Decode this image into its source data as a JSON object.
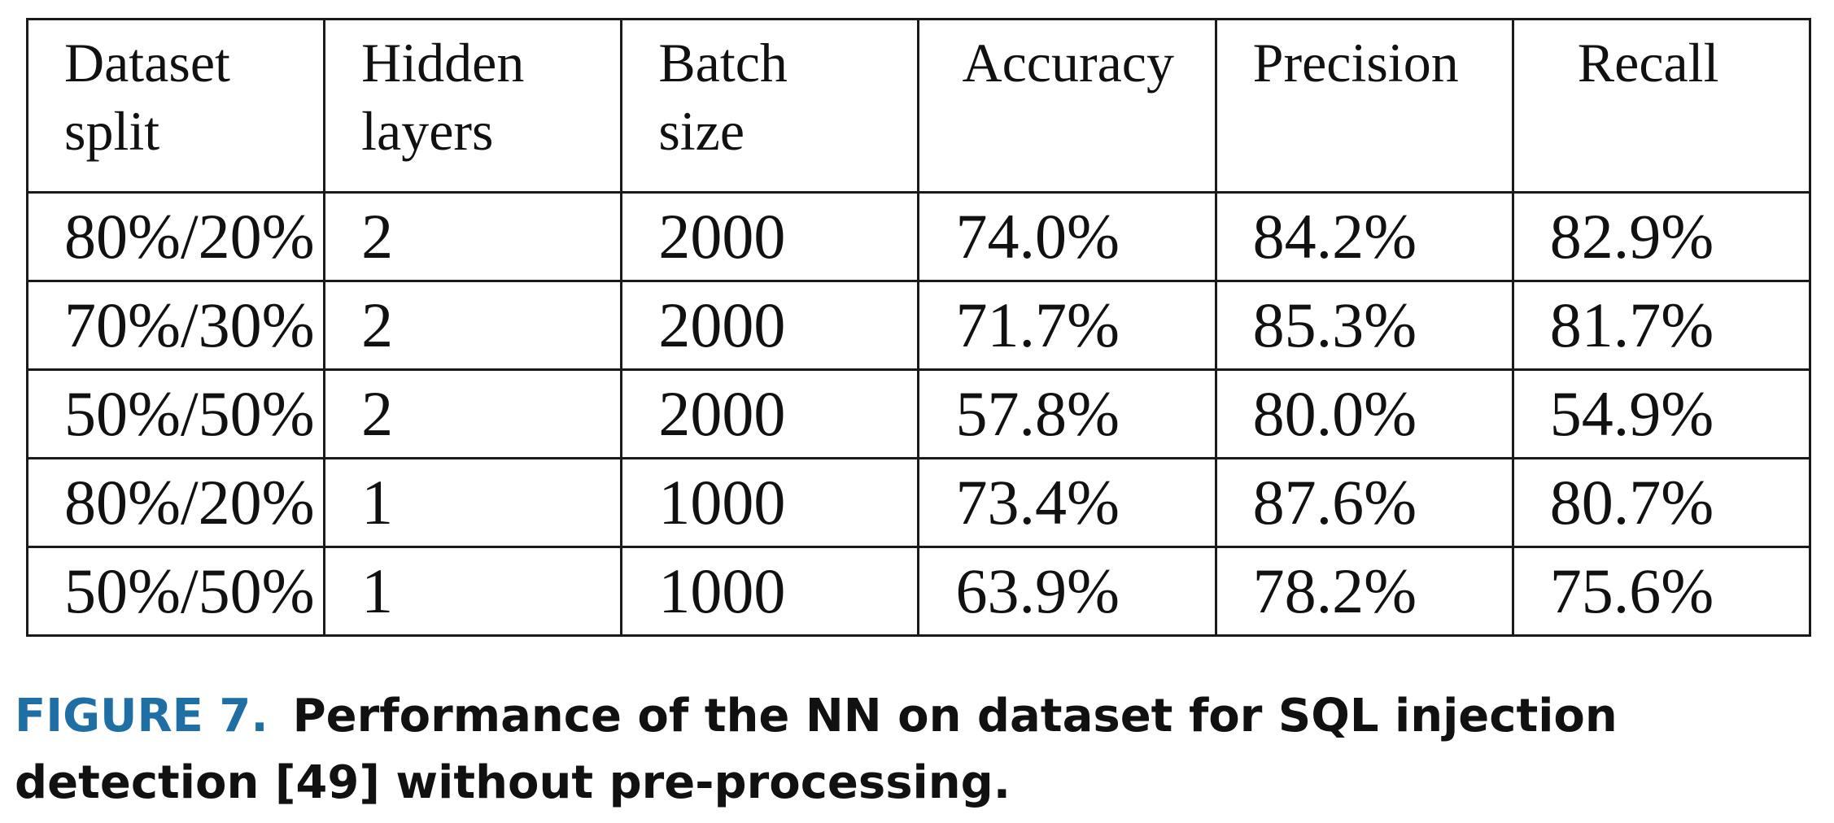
{
  "table": {
    "headers": [
      [
        "Dataset",
        "split"
      ],
      [
        "Hidden",
        "layers"
      ],
      [
        "Batch",
        "size"
      ],
      [
        "Accuracy",
        ""
      ],
      [
        "Precision",
        ""
      ],
      [
        "Recall",
        ""
      ]
    ],
    "rows": [
      [
        "80%/20%",
        "2",
        "2000",
        "74.0%",
        "84.2%",
        "82.9%"
      ],
      [
        "70%/30%",
        "2",
        "2000",
        "71.7%",
        "85.3%",
        "81.7%"
      ],
      [
        "50%/50%",
        "2",
        "2000",
        "57.8%",
        "80.0%",
        "54.9%"
      ],
      [
        "80%/20%",
        "1",
        "1000",
        "73.4%",
        "87.6%",
        "80.7%"
      ],
      [
        "50%/50%",
        "1",
        "1000",
        "63.9%",
        "78.2%",
        "75.6%"
      ]
    ]
  },
  "caption": {
    "label": "FIGURE 7.",
    "text": "Performance of the NN on dataset for SQL injection detection [49] without pre-processing."
  },
  "colors": {
    "figure_label": "#1f6fa5",
    "text": "#111111",
    "border": "#1a1a1a"
  }
}
